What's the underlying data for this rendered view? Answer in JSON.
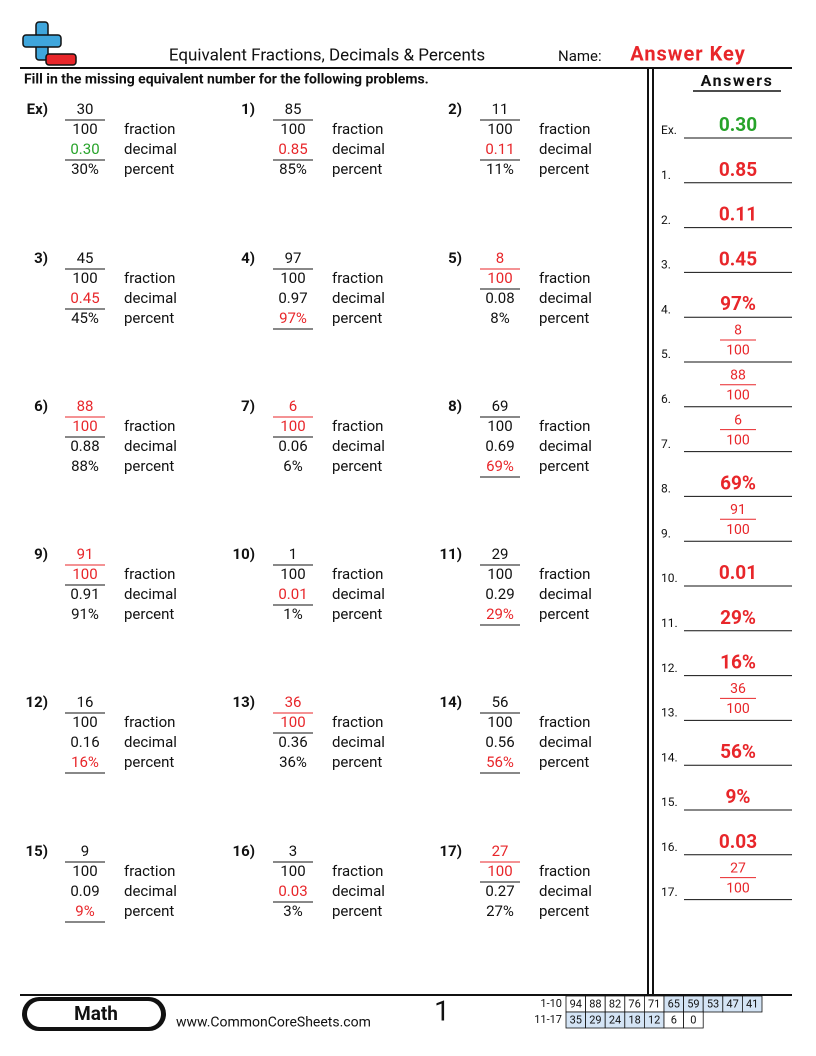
{
  "header": {
    "title": "Equivalent Fractions, Decimals & Percents",
    "name_label": "Name:",
    "name": "Answer Key",
    "instructions": "Fill in the missing equivalent number for the following problems.",
    "answers_title": "Answers"
  },
  "row_labels": [
    "fraction",
    "decimal",
    "percent"
  ],
  "problems": [
    {
      "label": "Ex)",
      "numerator": "30",
      "denominator": "100",
      "decimal": "0.30",
      "percent": "30%",
      "highlight": "decimal",
      "color": "#27a32a"
    },
    {
      "label": "1)",
      "numerator": "85",
      "denominator": "100",
      "decimal": "0.85",
      "percent": "85%",
      "highlight": "decimal",
      "color": "#e8262a"
    },
    {
      "label": "2)",
      "numerator": "11",
      "denominator": "100",
      "decimal": "0.11",
      "percent": "11%",
      "highlight": "decimal",
      "color": "#e8262a"
    },
    {
      "label": "3)",
      "numerator": "45",
      "denominator": "100",
      "decimal": "0.45",
      "percent": "45%",
      "highlight": "decimal",
      "color": "#e8262a"
    },
    {
      "label": "4)",
      "numerator": "97",
      "denominator": "100",
      "decimal": "0.97",
      "percent": "97%",
      "highlight": "percent",
      "color": "#e8262a"
    },
    {
      "label": "5)",
      "numerator": "8",
      "denominator": "100",
      "decimal": "0.08",
      "percent": "8%",
      "highlight": "fraction",
      "color": "#e8262a"
    },
    {
      "label": "6)",
      "numerator": "88",
      "denominator": "100",
      "decimal": "0.88",
      "percent": "88%",
      "highlight": "fraction",
      "color": "#e8262a"
    },
    {
      "label": "7)",
      "numerator": "6",
      "denominator": "100",
      "decimal": "0.06",
      "percent": "6%",
      "highlight": "fraction",
      "color": "#e8262a"
    },
    {
      "label": "8)",
      "numerator": "69",
      "denominator": "100",
      "decimal": "0.69",
      "percent": "69%",
      "highlight": "percent",
      "color": "#e8262a"
    },
    {
      "label": "9)",
      "numerator": "91",
      "denominator": "100",
      "decimal": "0.91",
      "percent": "91%",
      "highlight": "fraction",
      "color": "#e8262a"
    },
    {
      "label": "10)",
      "numerator": "1",
      "denominator": "100",
      "decimal": "0.01",
      "percent": "1%",
      "highlight": "decimal",
      "color": "#e8262a"
    },
    {
      "label": "11)",
      "numerator": "29",
      "denominator": "100",
      "decimal": "0.29",
      "percent": "29%",
      "highlight": "percent",
      "color": "#e8262a"
    },
    {
      "label": "12)",
      "numerator": "16",
      "denominator": "100",
      "decimal": "0.16",
      "percent": "16%",
      "highlight": "percent",
      "color": "#e8262a"
    },
    {
      "label": "13)",
      "numerator": "36",
      "denominator": "100",
      "decimal": "0.36",
      "percent": "36%",
      "highlight": "fraction",
      "color": "#e8262a"
    },
    {
      "label": "14)",
      "numerator": "56",
      "denominator": "100",
      "decimal": "0.56",
      "percent": "56%",
      "highlight": "percent",
      "color": "#e8262a"
    },
    {
      "label": "15)",
      "numerator": "9",
      "denominator": "100",
      "decimal": "0.09",
      "percent": "9%",
      "highlight": "percent",
      "color": "#e8262a"
    },
    {
      "label": "16)",
      "numerator": "3",
      "denominator": "100",
      "decimal": "0.03",
      "percent": "3%",
      "highlight": "decimal",
      "color": "#e8262a"
    },
    {
      "label": "17)",
      "numerator": "27",
      "denominator": "100",
      "decimal": "0.27",
      "percent": "27%",
      "highlight": "fraction",
      "color": "#e8262a"
    }
  ],
  "answers": [
    {
      "label": "Ex.",
      "value": "0.30",
      "color": "#27a32a"
    },
    {
      "label": "1.",
      "value": "0.85",
      "color": "#e8262a"
    },
    {
      "label": "2.",
      "value": "0.11",
      "color": "#e8262a"
    },
    {
      "label": "3.",
      "value": "0.45",
      "color": "#e8262a"
    },
    {
      "label": "4.",
      "value": "97%",
      "color": "#e8262a"
    },
    {
      "label": "5.",
      "numerator": "8",
      "denominator": "100",
      "color": "#e8262a"
    },
    {
      "label": "6.",
      "numerator": "88",
      "denominator": "100",
      "color": "#e8262a"
    },
    {
      "label": "7.",
      "numerator": "6",
      "denominator": "100",
      "color": "#e8262a"
    },
    {
      "label": "8.",
      "value": "69%",
      "color": "#e8262a"
    },
    {
      "label": "9.",
      "numerator": "91",
      "denominator": "100",
      "color": "#e8262a"
    },
    {
      "label": "10.",
      "value": "0.01",
      "color": "#e8262a"
    },
    {
      "label": "11.",
      "value": "29%",
      "color": "#e8262a"
    },
    {
      "label": "12.",
      "value": "16%",
      "color": "#e8262a"
    },
    {
      "label": "13.",
      "numerator": "36",
      "denominator": "100",
      "color": "#e8262a"
    },
    {
      "label": "14.",
      "value": "56%",
      "color": "#e8262a"
    },
    {
      "label": "15.",
      "value": "9%",
      "color": "#e8262a"
    },
    {
      "label": "16.",
      "value": "0.03",
      "color": "#e8262a"
    },
    {
      "label": "17.",
      "numerator": "27",
      "denominator": "100",
      "color": "#e8262a"
    }
  ],
  "footer": {
    "subject": "Math",
    "site": "www.CommonCoreSheets.com",
    "page": "1",
    "score_rows": [
      {
        "label": "1-10",
        "cells": [
          "94",
          "88",
          "82",
          "76",
          "71",
          "65",
          "59",
          "53",
          "47",
          "41"
        ],
        "shaded": [
          false,
          false,
          false,
          false,
          false,
          true,
          true,
          true,
          true,
          true
        ]
      },
      {
        "label": "11-17",
        "cells": [
          "35",
          "29",
          "24",
          "18",
          "12",
          "6",
          "0"
        ],
        "shaded": [
          true,
          true,
          true,
          true,
          true,
          false,
          false
        ]
      }
    ],
    "shade_color": "#d4e4f5"
  }
}
